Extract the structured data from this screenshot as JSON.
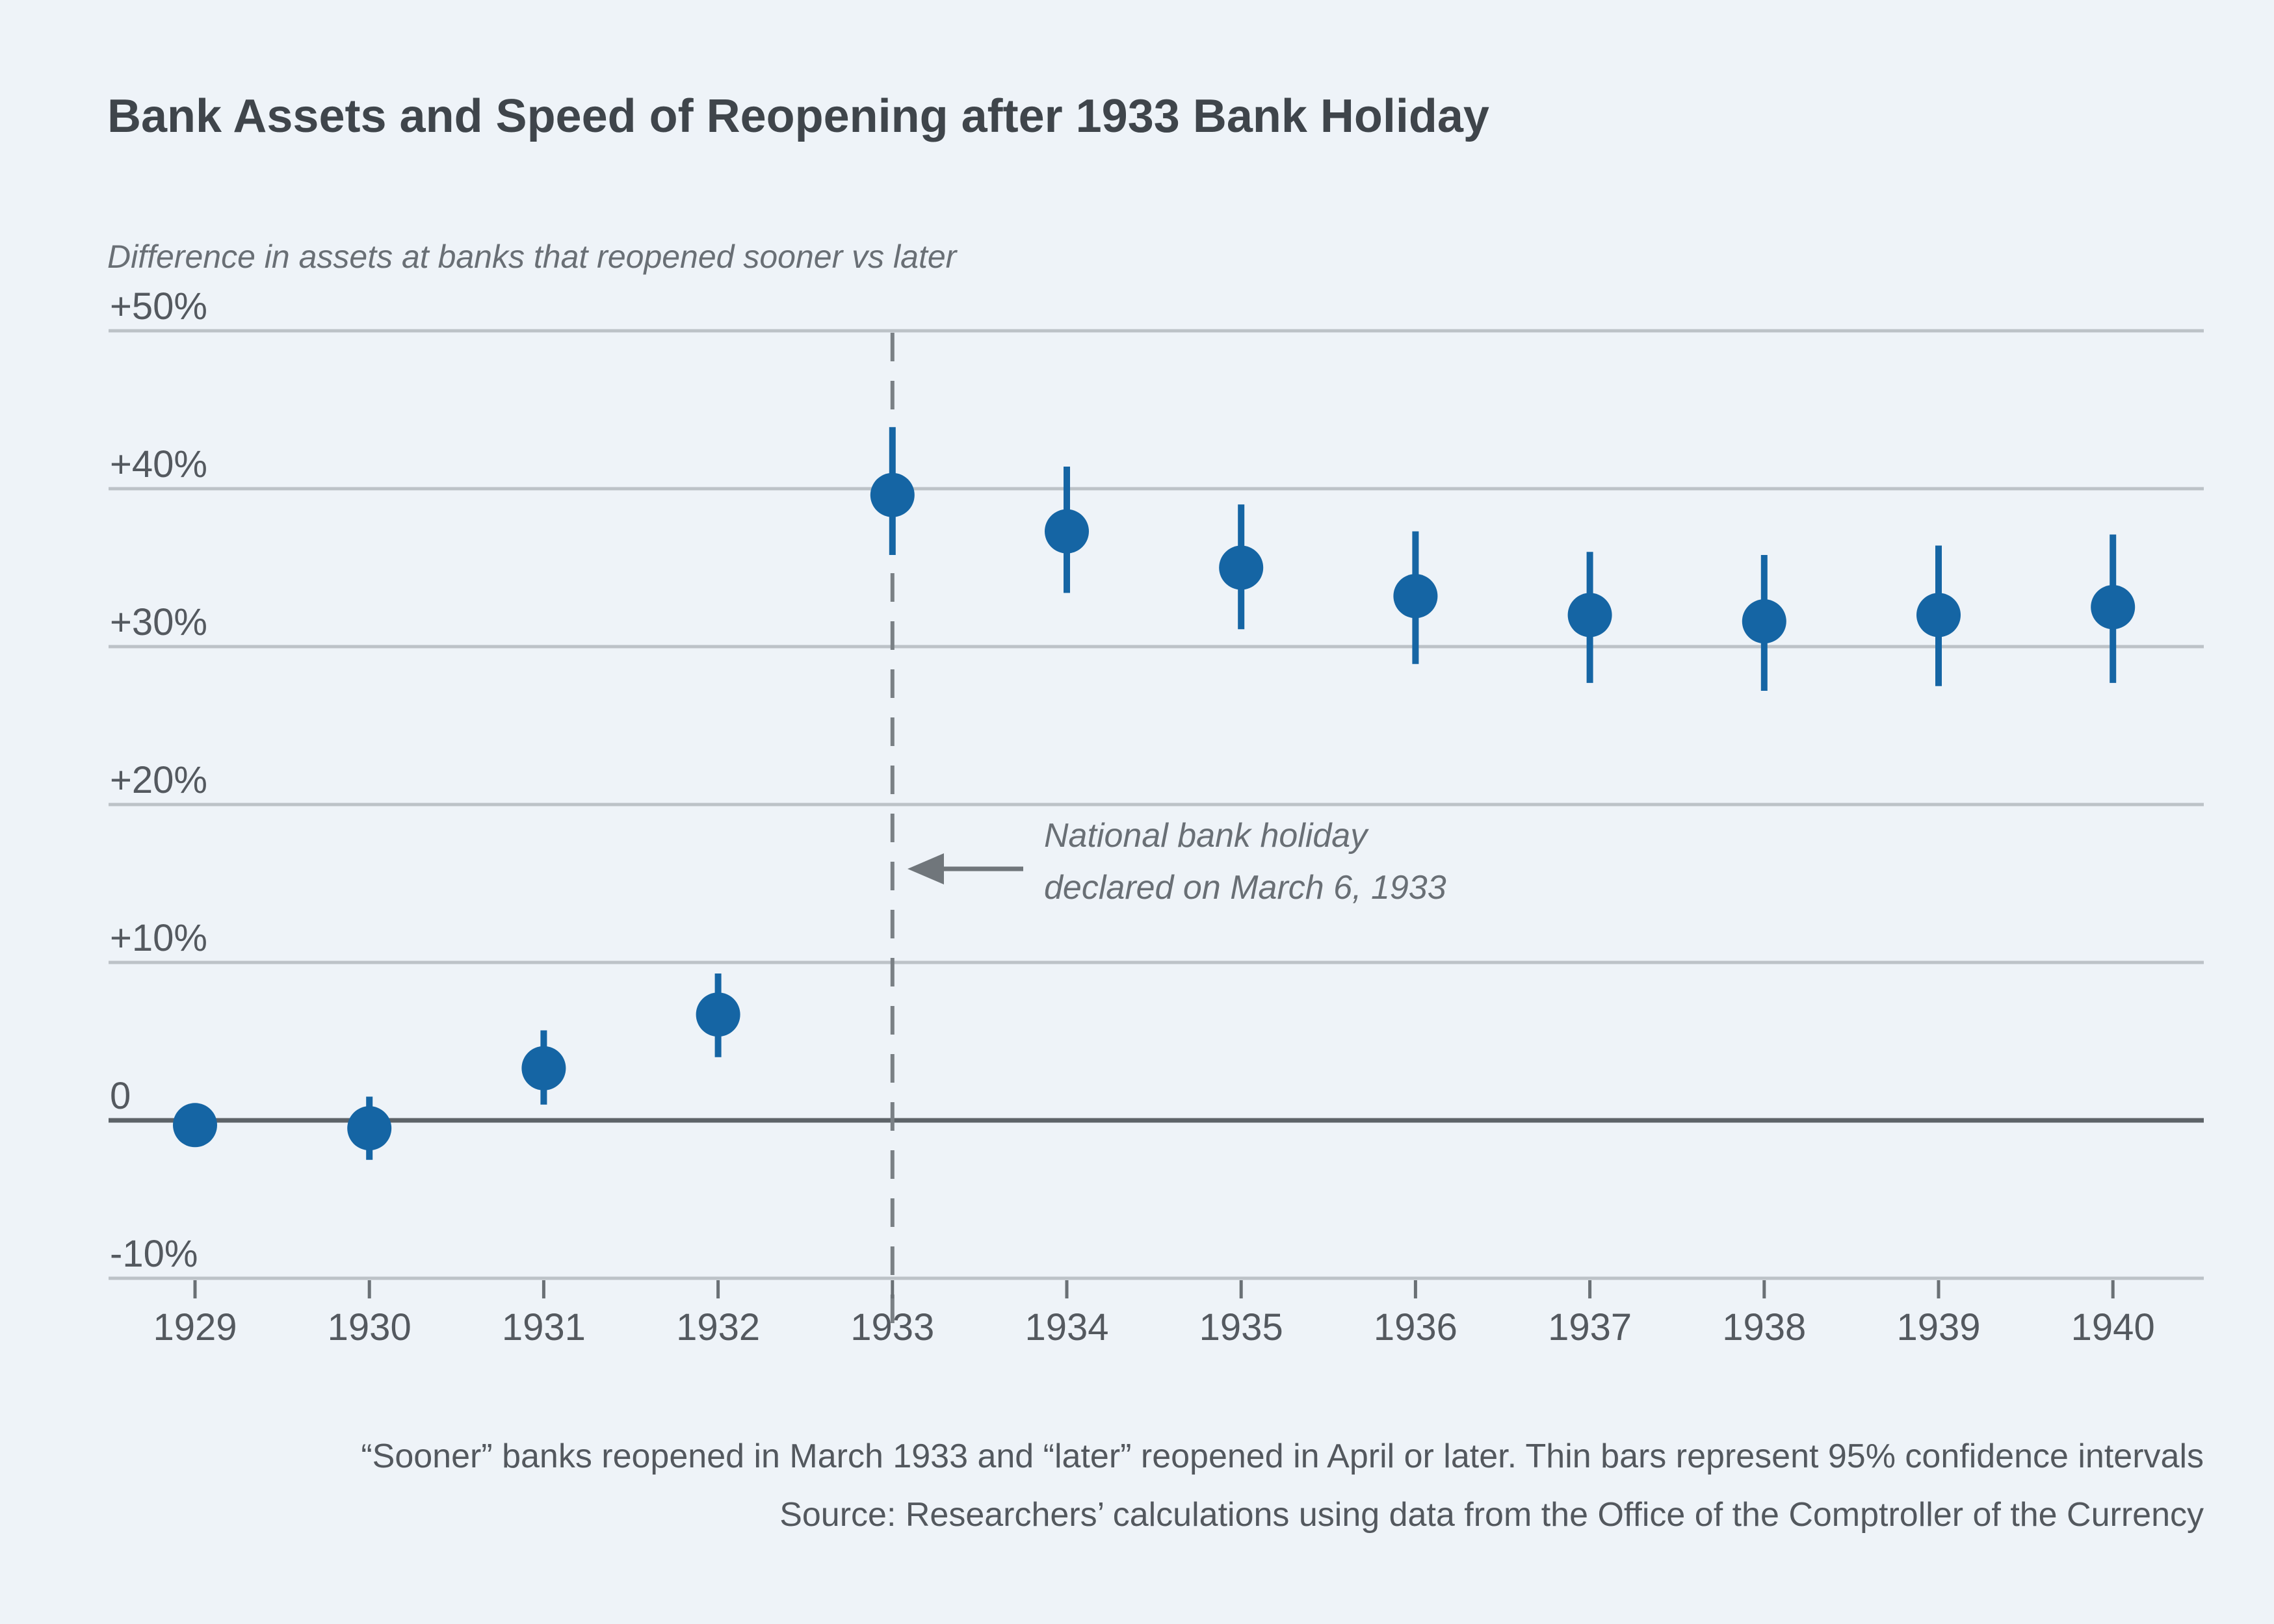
{
  "page": {
    "background_color": "#eef3f8"
  },
  "header": {
    "title": "Bank Assets and Speed of Reopening after 1933 Bank Holiday",
    "subtitle": "Difference in assets at banks that reopened sooner vs later"
  },
  "annotation": {
    "line1": "National bank holiday",
    "line2": "declared on March 6, 1933"
  },
  "footer": {
    "note": "“Sooner” banks reopened in March 1933 and “later” reopened in April or later. Thin bars represent 95% confidence intervals",
    "source": "Source: Researchers’ calculations using data from the Office of the Comptroller of the Currency"
  },
  "chart_data": {
    "type": "scatter",
    "title": "Bank Assets and Speed of Reopening after 1933 Bank Holiday",
    "subtitle": "Difference in assets at banks that reopened sooner vs later",
    "xlabel": "",
    "ylabel": "Difference in assets, percent",
    "x": [
      1929,
      1930,
      1931,
      1932,
      1933,
      1934,
      1935,
      1936,
      1937,
      1938,
      1939,
      1940
    ],
    "series": [
      {
        "name": "Difference in assets at banks that reopened sooner vs later",
        "values": [
          -0.3,
          -0.5,
          3.3,
          6.7,
          39.6,
          37.3,
          35.0,
          33.2,
          32.0,
          31.6,
          32.0,
          32.5
        ],
        "ci_high": [
          0.7,
          1.5,
          5.7,
          9.3,
          43.9,
          41.4,
          39.0,
          37.3,
          36.0,
          35.8,
          36.4,
          37.1
        ],
        "ci_low": [
          -1.3,
          -2.5,
          1.0,
          4.0,
          35.8,
          33.4,
          31.1,
          28.9,
          27.7,
          27.2,
          27.5,
          27.7
        ]
      }
    ],
    "yticks": [
      {
        "label": "+50%",
        "value": 50
      },
      {
        "label": "+40%",
        "value": 40
      },
      {
        "label": "+30%",
        "value": 30
      },
      {
        "label": "+20%",
        "value": 20
      },
      {
        "label": "+10%",
        "value": 10
      },
      {
        "label": "0",
        "value": 0
      },
      {
        "label": "-10%",
        "value": -10
      }
    ],
    "ylim": [
      -12,
      52
    ],
    "grid": "horizontal",
    "legend_position": "none",
    "event_line": {
      "x": 1933,
      "label": "National bank holiday declared on March 6, 1933"
    },
    "colors": {
      "point": "#1565a4",
      "gridline": "#bcc2c7",
      "zero_line": "#5d6368",
      "dashed_line": "#7a8085",
      "tick": "#6a7075",
      "axis_label": "#54595f",
      "arrow": "#70767b"
    }
  }
}
